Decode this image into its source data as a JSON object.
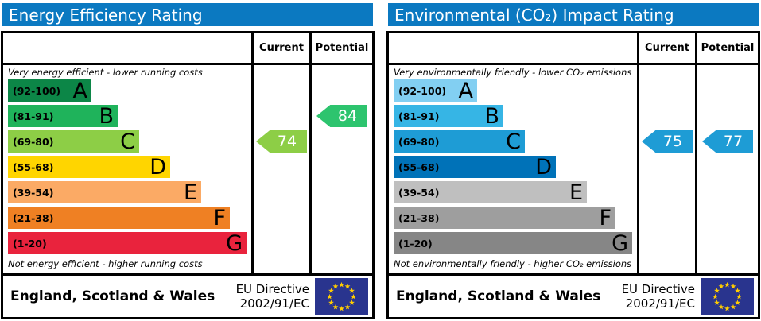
{
  "colors": {
    "header_bar": "#0b79c1",
    "eu_flag_bg": "#29348e",
    "eu_star": "#ffcc00"
  },
  "panels": [
    {
      "title": "Energy Efficiency Rating",
      "columns": {
        "current": "Current",
        "potential": "Potential"
      },
      "top_note": "Very energy efficient - lower running costs",
      "bottom_note": "Not energy efficient - higher running costs",
      "bands": [
        {
          "letter": "A",
          "range": "(92-100)",
          "color": "#0c8647",
          "width_pct": 35
        },
        {
          "letter": "B",
          "range": "(81-91)",
          "color": "#1fb35b",
          "width_pct": 46
        },
        {
          "letter": "C",
          "range": "(69-80)",
          "color": "#8dce46",
          "width_pct": 55
        },
        {
          "letter": "D",
          "range": "(55-68)",
          "color": "#ffd500",
          "width_pct": 68
        },
        {
          "letter": "E",
          "range": "(39-54)",
          "color": "#fbaa65",
          "width_pct": 81
        },
        {
          "letter": "F",
          "range": "(21-38)",
          "color": "#ef8023",
          "width_pct": 93
        },
        {
          "letter": "G",
          "range": "(1-20)",
          "color": "#e9233d",
          "width_pct": 100
        }
      ],
      "current": {
        "value": "74",
        "band_index": 2,
        "color": "#8dce46"
      },
      "potential": {
        "value": "84",
        "band_index": 1,
        "color": "#2dc46e"
      },
      "footer": {
        "region": "England, Scotland & Wales",
        "directive_line1": "EU Directive",
        "directive_line2": "2002/91/EC"
      }
    },
    {
      "title": "Environmental (CO₂) Impact Rating",
      "columns": {
        "current": "Current",
        "potential": "Potential"
      },
      "top_note": "Very environmentally friendly - lower CO₂ emissions",
      "bottom_note": "Not environmentally friendly - higher CO₂ emissions",
      "bands": [
        {
          "letter": "A",
          "range": "(92-100)",
          "color": "#82cff2",
          "width_pct": 35
        },
        {
          "letter": "B",
          "range": "(81-91)",
          "color": "#36b5e5",
          "width_pct": 46
        },
        {
          "letter": "C",
          "range": "(69-80)",
          "color": "#1e9cd5",
          "width_pct": 55
        },
        {
          "letter": "D",
          "range": "(55-68)",
          "color": "#0072b8",
          "width_pct": 68
        },
        {
          "letter": "E",
          "range": "(39-54)",
          "color": "#bfbfbf",
          "width_pct": 81
        },
        {
          "letter": "F",
          "range": "(21-38)",
          "color": "#9e9e9e",
          "width_pct": 93
        },
        {
          "letter": "G",
          "range": "(1-20)",
          "color": "#868686",
          "width_pct": 100
        }
      ],
      "current": {
        "value": "75",
        "band_index": 2,
        "color": "#1e9cd5"
      },
      "potential": {
        "value": "77",
        "band_index": 2,
        "color": "#1e9cd5"
      },
      "footer": {
        "region": "England, Scotland & Wales",
        "directive_line1": "EU Directive",
        "directive_line2": "2002/91/EC"
      }
    }
  ],
  "chart_data": [
    {
      "type": "bar",
      "title": "Energy Efficiency Rating",
      "categories": [
        "A (92-100)",
        "B (81-91)",
        "C (69-80)",
        "D (55-68)",
        "E (39-54)",
        "F (21-38)",
        "G (1-20)"
      ],
      "series": [
        {
          "name": "Current",
          "value": 74,
          "band": "C"
        },
        {
          "name": "Potential",
          "value": 84,
          "band": "B"
        }
      ],
      "ylim": [
        1,
        100
      ],
      "annotations": [
        "Very energy efficient - lower running costs",
        "Not energy efficient - higher running costs",
        "England, Scotland & Wales",
        "EU Directive 2002/91/EC"
      ]
    },
    {
      "type": "bar",
      "title": "Environmental (CO₂) Impact Rating",
      "categories": [
        "A (92-100)",
        "B (81-91)",
        "C (69-80)",
        "D (55-68)",
        "E (39-54)",
        "F (21-38)",
        "G (1-20)"
      ],
      "series": [
        {
          "name": "Current",
          "value": 75,
          "band": "C"
        },
        {
          "name": "Potential",
          "value": 77,
          "band": "C"
        }
      ],
      "ylim": [
        1,
        100
      ],
      "annotations": [
        "Very environmentally friendly - lower CO₂ emissions",
        "Not environmentally friendly - higher CO₂ emissions",
        "England, Scotland & Wales",
        "EU Directive 2002/91/EC"
      ]
    }
  ]
}
